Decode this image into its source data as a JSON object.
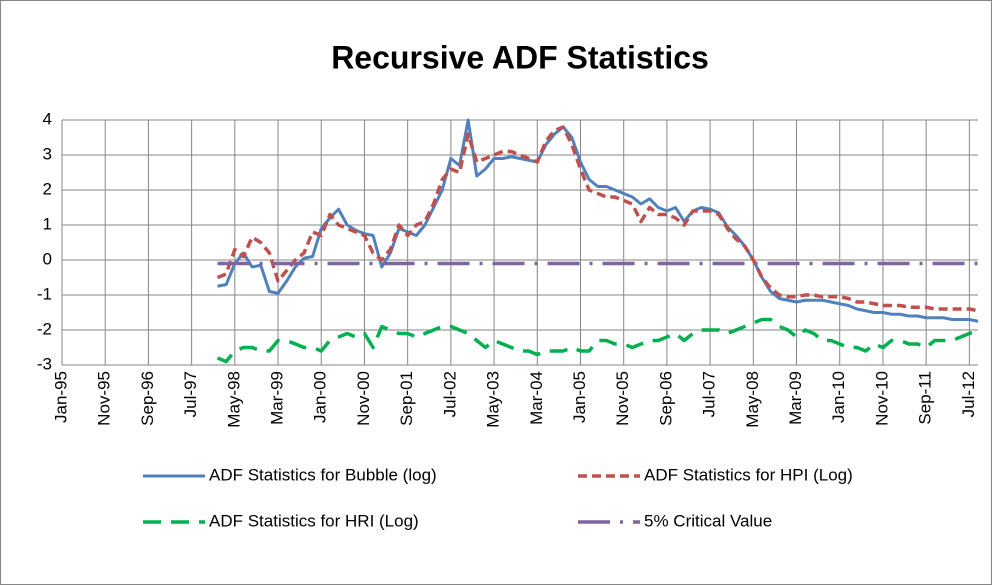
{
  "chart_data": {
    "type": "line",
    "title": "Recursive ADF Statistics",
    "categories": [
      "Jan-95",
      null,
      null,
      null,
      null,
      "Nov-95",
      null,
      null,
      null,
      null,
      "Sep-96",
      null,
      null,
      null,
      null,
      "Jul-97",
      null,
      null,
      null,
      null,
      "May-98",
      null,
      null,
      null,
      null,
      "Mar-99",
      null,
      null,
      null,
      null,
      "Jan-00",
      null,
      null,
      null,
      null,
      "Nov-00",
      null,
      null,
      null,
      null,
      "Sep-01",
      null,
      null,
      null,
      null,
      "Jul-02",
      null,
      null,
      null,
      null,
      "May-03",
      null,
      null,
      null,
      null,
      "Mar-04",
      null,
      null,
      null,
      null,
      "Jan-05",
      null,
      null,
      null,
      null,
      "Nov-05",
      null,
      null,
      null,
      null,
      "Sep-06",
      null,
      null,
      null,
      null,
      "Jul-07",
      null,
      null,
      null,
      null,
      "May-08",
      null,
      null,
      null,
      null,
      "Mar-09",
      null,
      null,
      null,
      null,
      "Jan-10",
      null,
      null,
      null,
      null,
      "Nov-10",
      null,
      null,
      null,
      null,
      "Sep-11",
      null,
      null,
      null,
      null,
      "Jul-12",
      null
    ],
    "series": [
      {
        "name": "ADF Statistics for Bubble (log)",
        "color": "#4f81bd",
        "dash": "solid",
        "values": [
          null,
          null,
          null,
          null,
          null,
          null,
          null,
          null,
          null,
          null,
          null,
          null,
          null,
          null,
          null,
          null,
          null,
          null,
          -0.75,
          -0.7,
          -0.1,
          0.2,
          -0.2,
          -0.15,
          -0.9,
          -0.95,
          -0.6,
          -0.2,
          0.05,
          0.1,
          0.9,
          1.2,
          1.45,
          1.0,
          0.85,
          0.75,
          0.7,
          -0.2,
          0.2,
          0.9,
          0.8,
          0.7,
          1.0,
          1.5,
          2.0,
          2.9,
          2.7,
          4.0,
          2.4,
          2.6,
          2.9,
          2.9,
          2.95,
          2.9,
          2.85,
          2.8,
          3.3,
          3.6,
          3.8,
          3.5,
          2.8,
          2.3,
          2.1,
          2.1,
          2.0,
          1.9,
          1.8,
          1.6,
          1.75,
          1.5,
          1.4,
          1.5,
          1.1,
          1.4,
          1.5,
          1.45,
          1.35,
          0.95,
          0.7,
          0.4,
          0,
          -0.5,
          -0.9,
          -1.1,
          -1.15,
          -1.2,
          -1.15,
          -1.15,
          -1.15,
          -1.2,
          -1.25,
          -1.3,
          -1.4,
          -1.45,
          -1.5,
          -1.5,
          -1.55,
          -1.55,
          -1.6,
          -1.6,
          -1.65,
          -1.65,
          -1.65,
          -1.7,
          -1.7,
          -1.7,
          -1.75
        ]
      },
      {
        "name": "ADF Statistics for HPI (Log)",
        "color": "#c0504d",
        "dash": "dash",
        "values": [
          null,
          null,
          null,
          null,
          null,
          null,
          null,
          null,
          null,
          null,
          null,
          null,
          null,
          null,
          null,
          null,
          null,
          null,
          -0.5,
          -0.4,
          0.3,
          0.1,
          0.65,
          0.5,
          0.2,
          -0.6,
          -0.3,
          0,
          0.2,
          0.8,
          0.7,
          1.3,
          1.0,
          0.9,
          0.8,
          0.7,
          0.2,
          0,
          0.3,
          1.0,
          0.7,
          1.0,
          1.1,
          1.6,
          2.3,
          2.6,
          2.5,
          3.6,
          2.8,
          2.9,
          3.0,
          3.1,
          3.1,
          3.0,
          2.9,
          2.8,
          3.4,
          3.7,
          3.8,
          3.3,
          2.6,
          2.0,
          1.9,
          1.8,
          1.8,
          1.7,
          1.6,
          1.1,
          1.5,
          1.3,
          1.3,
          1.2,
          1.0,
          1.4,
          1.4,
          1.4,
          1.3,
          0.9,
          0.6,
          0.4,
          0,
          -0.5,
          -0.8,
          -1.0,
          -1.05,
          -1.05,
          -1.0,
          -1.0,
          -1.05,
          -1.05,
          -1.05,
          -1.1,
          -1.2,
          -1.2,
          -1.25,
          -1.3,
          -1.3,
          -1.3,
          -1.35,
          -1.35,
          -1.35,
          -1.4,
          -1.4,
          -1.4,
          -1.4,
          -1.4,
          -1.45
        ]
      },
      {
        "name": "ADF Statistics for HRI (Log)",
        "color": "#00b050",
        "dash": "long-dash",
        "values": [
          null,
          null,
          null,
          null,
          null,
          null,
          null,
          null,
          null,
          null,
          null,
          null,
          null,
          null,
          null,
          null,
          null,
          null,
          -2.8,
          -2.9,
          -2.6,
          -2.5,
          -2.5,
          -2.6,
          -2.6,
          -2.3,
          -2.3,
          -2.4,
          -2.5,
          -2.5,
          -2.6,
          -2.3,
          -2.2,
          -2.1,
          -2.2,
          -2.1,
          -2.5,
          -1.9,
          -2.0,
          -2.1,
          -2.1,
          -2.2,
          -2.1,
          -2.0,
          -1.9,
          -1.9,
          -2.0,
          -2.1,
          -2.3,
          -2.5,
          -2.3,
          -2.4,
          -2.5,
          -2.6,
          -2.6,
          -2.7,
          -2.6,
          -2.6,
          -2.6,
          -2.5,
          -2.6,
          -2.6,
          -2.3,
          -2.3,
          -2.4,
          -2.4,
          -2.5,
          -2.4,
          -2.3,
          -2.3,
          -2.2,
          -2.1,
          -2.3,
          -2.1,
          -2.0,
          -2.0,
          -2.0,
          -2.1,
          -2.0,
          -1.9,
          -1.8,
          -1.7,
          -1.7,
          -1.9,
          -2.0,
          -2.2,
          -2.0,
          -2.1,
          -2.3,
          -2.3,
          -2.4,
          -2.5,
          -2.5,
          -2.6,
          -2.4,
          -2.5,
          -2.3,
          -2.3,
          -2.4,
          -2.4,
          -2.5,
          -2.3,
          -2.3,
          -2.3,
          -2.2,
          -2.1,
          -2.0
        ]
      },
      {
        "name": "5% Critical Value",
        "color": "#8064a2",
        "dash": "long-dash-dot",
        "values": [
          null,
          null,
          null,
          null,
          null,
          null,
          null,
          null,
          null,
          null,
          null,
          null,
          null,
          null,
          null,
          null,
          null,
          null,
          -0.1,
          -0.1,
          -0.1,
          -0.1,
          -0.1,
          -0.1,
          -0.1,
          -0.1,
          -0.1,
          -0.1,
          -0.1,
          -0.1,
          -0.1,
          -0.1,
          -0.1,
          -0.1,
          -0.1,
          -0.1,
          -0.1,
          -0.1,
          -0.1,
          -0.1,
          -0.1,
          -0.1,
          -0.1,
          -0.1,
          -0.1,
          -0.1,
          -0.1,
          -0.1,
          -0.1,
          -0.1,
          -0.1,
          -0.1,
          -0.1,
          -0.1,
          -0.1,
          -0.1,
          -0.1,
          -0.1,
          -0.1,
          -0.1,
          -0.1,
          -0.1,
          -0.1,
          -0.1,
          -0.1,
          -0.1,
          -0.1,
          -0.1,
          -0.1,
          -0.1,
          -0.1,
          -0.1,
          -0.1,
          -0.1,
          -0.1,
          -0.1,
          -0.1,
          -0.1,
          -0.1,
          -0.1,
          -0.1,
          -0.1,
          -0.1,
          -0.1,
          -0.1,
          -0.1,
          -0.1,
          -0.1,
          -0.1,
          -0.1,
          -0.1,
          -0.1,
          -0.1,
          -0.1,
          -0.1,
          -0.1,
          -0.1,
          -0.1,
          -0.1,
          -0.1,
          -0.1,
          -0.1,
          -0.1,
          -0.1,
          -0.1,
          -0.1,
          -0.1
        ]
      }
    ],
    "ylim": [
      -3,
      4
    ],
    "yticks": [
      -3,
      -2,
      -1,
      0,
      1,
      2,
      3,
      4
    ],
    "grid": true,
    "legend": "bottom"
  }
}
